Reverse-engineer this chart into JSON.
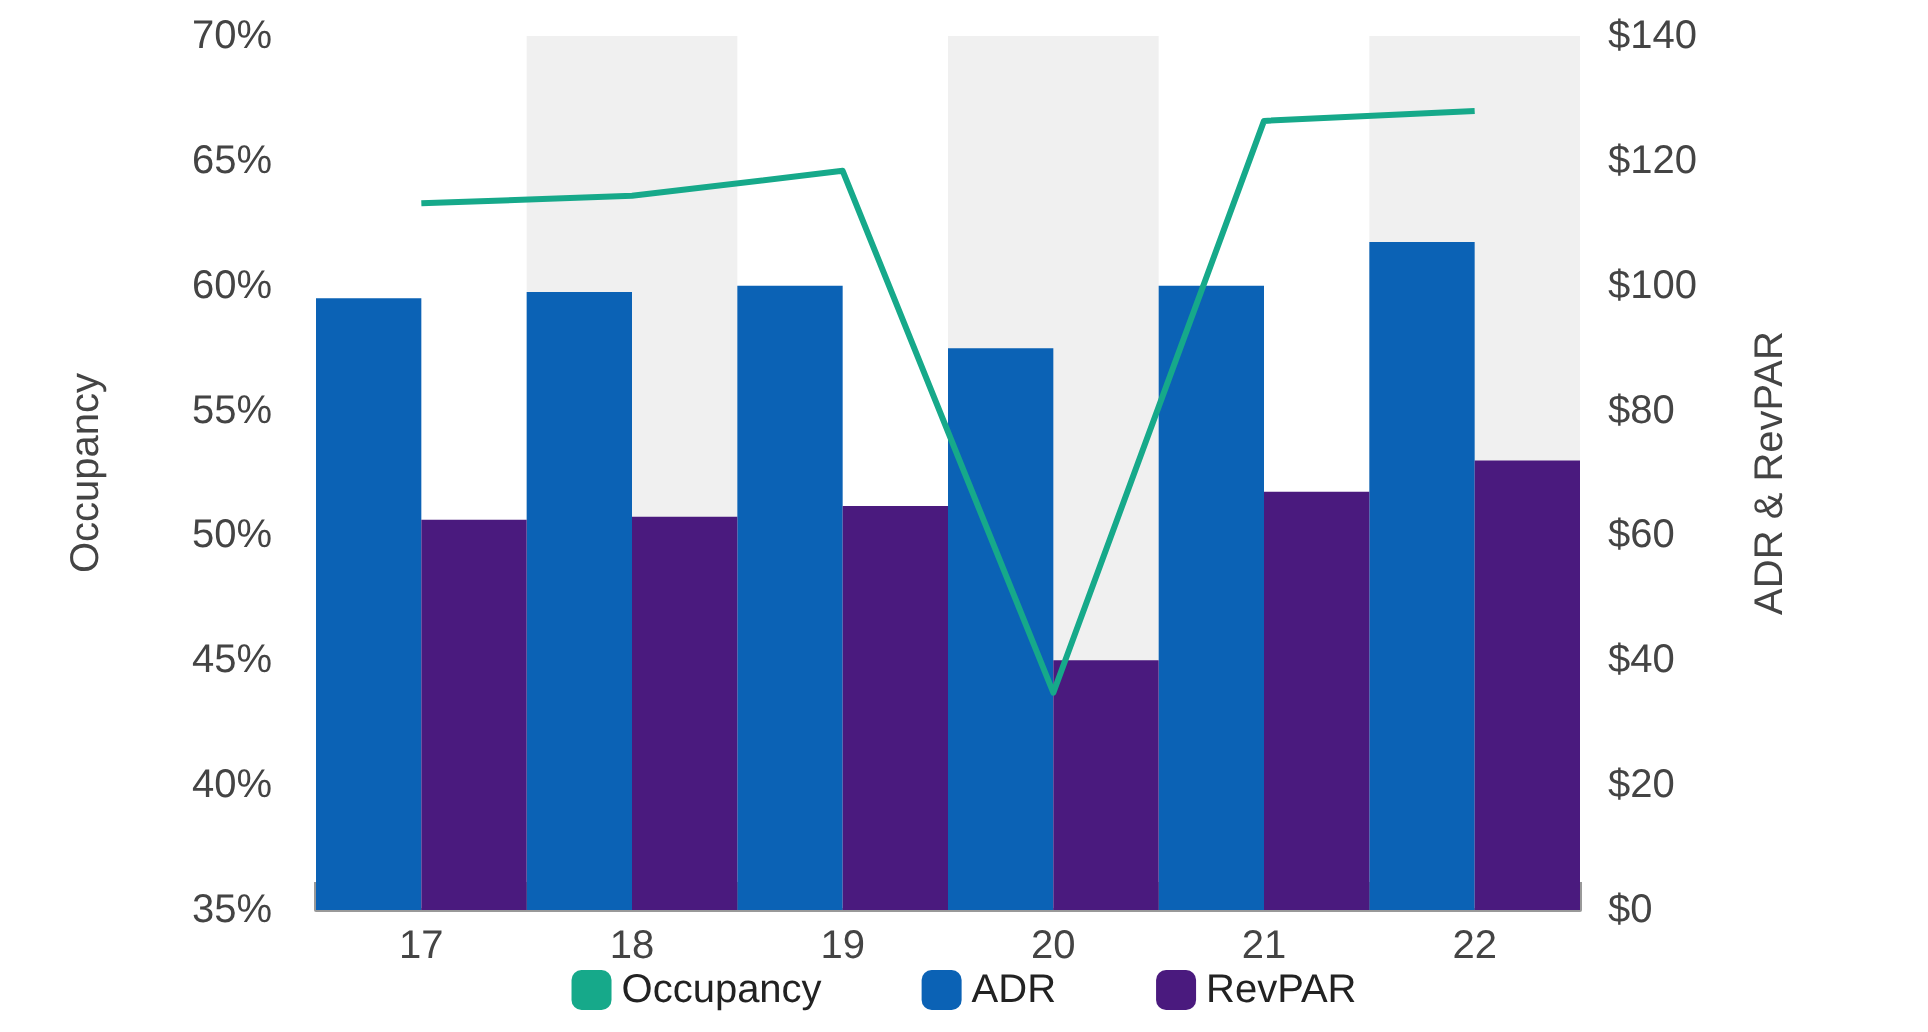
{
  "chart_data": {
    "type": "bar",
    "categories": [
      "17",
      "18",
      "19",
      "20",
      "21",
      "22"
    ],
    "ylabel": "Occupancy",
    "y2label": "ADR & RevPAR",
    "ylim": [
      35,
      70
    ],
    "yticks": [
      {
        "value": 35,
        "label": "35%"
      },
      {
        "value": 40,
        "label": "40%"
      },
      {
        "value": 45,
        "label": "45%"
      },
      {
        "value": 50,
        "label": "50%"
      },
      {
        "value": 55,
        "label": "55%"
      },
      {
        "value": 60,
        "label": "60%"
      },
      {
        "value": 65,
        "label": "65%"
      },
      {
        "value": 70,
        "label": "70%"
      }
    ],
    "y2lim": [
      0,
      140
    ],
    "y2ticks": [
      {
        "value": 0,
        "label": "$0"
      },
      {
        "value": 20,
        "label": "$20"
      },
      {
        "value": 40,
        "label": "$40"
      },
      {
        "value": 60,
        "label": "$60"
      },
      {
        "value": 80,
        "label": "$80"
      },
      {
        "value": 100,
        "label": "$100"
      },
      {
        "value": 120,
        "label": "$120"
      },
      {
        "value": 140,
        "label": "$140"
      }
    ],
    "series": [
      {
        "name": "Occupancy",
        "type": "line",
        "color": "#16a98a",
        "values": [
          63.3,
          63.6,
          64.6,
          43.7,
          66.6,
          67.0
        ]
      },
      {
        "name": "ADR",
        "axis": "y2",
        "color": "#0b62b5",
        "values": [
          98,
          99,
          100,
          90,
          100,
          107
        ]
      },
      {
        "name": "RevPAR",
        "axis": "y2",
        "color": "#4a1a7e",
        "values": [
          62.5,
          63,
          64.7,
          40,
          67,
          72
        ]
      }
    ],
    "legend": "bottom",
    "marker": "none",
    "line_style": "solid"
  }
}
